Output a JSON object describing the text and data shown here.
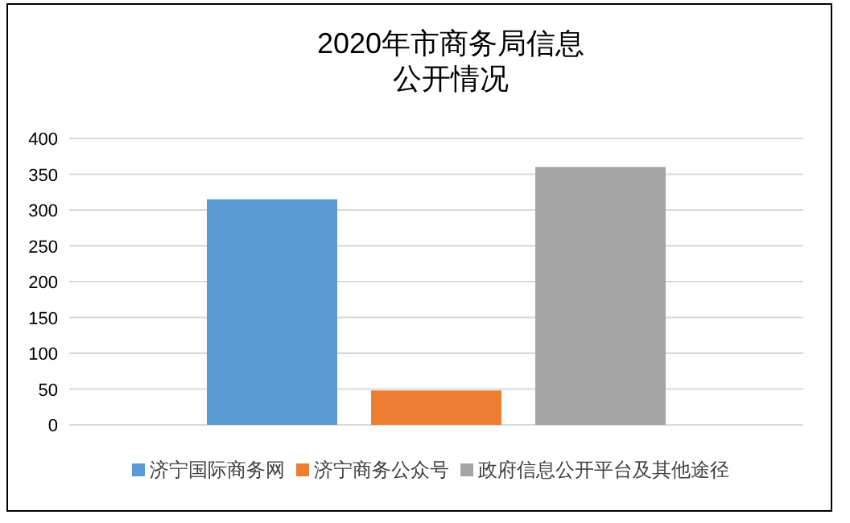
{
  "chart_data": {
    "type": "bar",
    "title": "2020年市商务局信息公开情况",
    "categories": [
      null
    ],
    "series": [
      {
        "name": "济宁国际商务网",
        "color": "#5b9bd5",
        "values": [
          315
        ]
      },
      {
        "name": "济宁商务公众号",
        "color": "#ed7d31",
        "values": [
          48
        ]
      },
      {
        "name": "政府信息公开平台及其他途径",
        "color": "#a5a5a5",
        "values": [
          360
        ]
      }
    ],
    "ylim": [
      0,
      400
    ],
    "yticks": [
      0,
      50,
      100,
      150,
      200,
      250,
      300,
      350,
      400
    ],
    "grid": "y",
    "legend": "bottom"
  }
}
